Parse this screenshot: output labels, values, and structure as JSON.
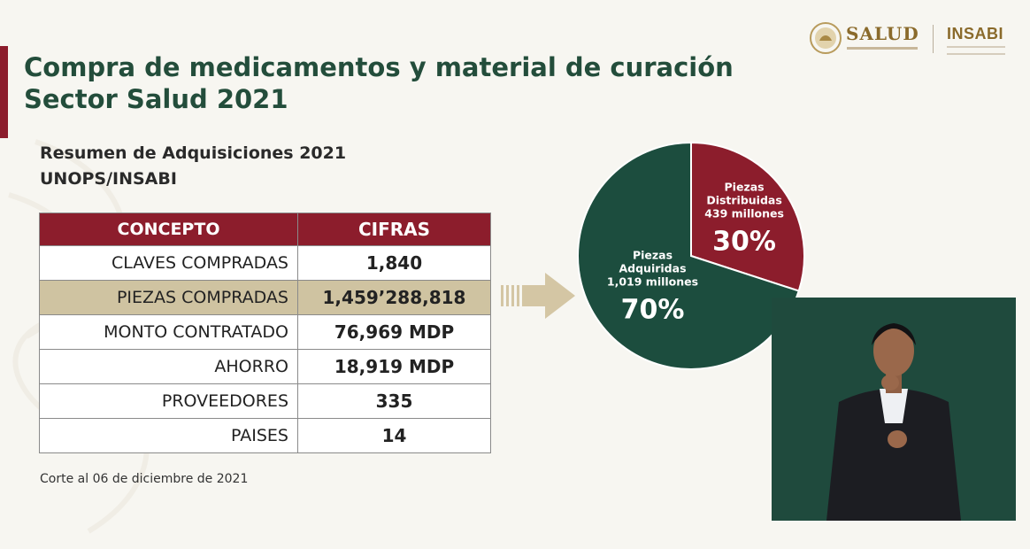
{
  "logos": {
    "salud": "SALUD",
    "insabi": "INSABI"
  },
  "title": {
    "line1": "Compra de medicamentos y material de curación",
    "line2": "Sector Salud 2021"
  },
  "subtitle": {
    "line1": "Resumen de Adquisiciones 2021",
    "line2": "UNOPS/INSABI"
  },
  "table": {
    "headers": [
      "CONCEPTO",
      "CIFRAS"
    ],
    "rows": [
      {
        "concepto": "CLAVES COMPRADAS",
        "cifra": "1,840"
      },
      {
        "concepto": "PIEZAS COMPRADAS",
        "cifra": "1,459’288,818"
      },
      {
        "concepto": "MONTO CONTRATADO",
        "cifra": "76,969 MDP"
      },
      {
        "concepto": "AHORRO",
        "cifra": "18,919 MDP"
      },
      {
        "concepto": "PROVEEDORES",
        "cifra": "335"
      },
      {
        "concepto": "PAISES",
        "cifra": "14"
      }
    ]
  },
  "footnote": "Corte al 06 de diciembre de 2021",
  "chart_data": {
    "type": "pie",
    "slices": [
      {
        "label_lines": [
          "Piezas",
          "Distribuidas",
          "439 millones"
        ],
        "value": 30,
        "pct_label": "30%",
        "color": "#8c1d2c"
      },
      {
        "label_lines": [
          "Piezas",
          "Adquiridas",
          "1,019 millones"
        ],
        "value": 70,
        "pct_label": "70%",
        "color": "#1c4d3e"
      }
    ]
  },
  "colors": {
    "accent": "#8c1d2c",
    "title_green": "#234d3b",
    "highlight": "#cfc3a1",
    "arrow": "#d4c6a4",
    "pie_green": "#1c4d3e"
  }
}
